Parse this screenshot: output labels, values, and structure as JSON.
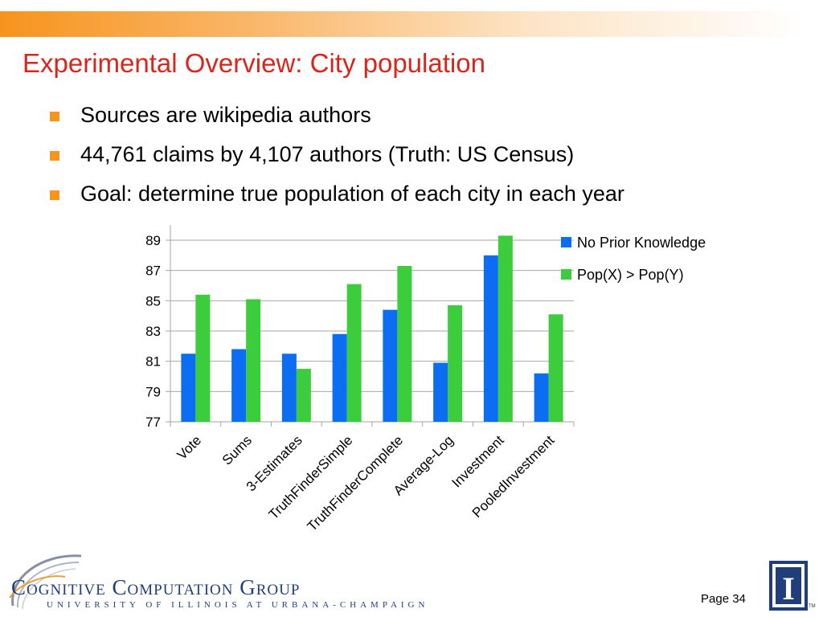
{
  "slide": {
    "title": "Experimental Overview: City population",
    "bullets": [
      "Sources are wikipedia authors",
      "44,761 claims by 4,107 authors (Truth: US Census)",
      "Goal: determine true population of each city in each year"
    ],
    "page_label": "Page 34"
  },
  "footer": {
    "logo_name": "Cognitive Computation Group",
    "logo_subtitle": "UNIVERSITY OF ILLINOIS AT URBANA-CHAMPAIGN",
    "emblem_letter": "I",
    "trademark": "TM"
  },
  "colors": {
    "accent_orange": "#f7941d",
    "title_red": "#d9261c",
    "series_blue": "#0b6ef2",
    "series_green": "#3ccd3c",
    "logo_navy": "#1f3e7a"
  },
  "chart_data": {
    "type": "bar",
    "categories": [
      "Vote",
      "Sums",
      "3-Estimates",
      "TruthFinderSimple",
      "TruthFinderComplete",
      "Average-Log",
      "Investment",
      "PooledInvestment"
    ],
    "series": [
      {
        "name": "No Prior Knowledge",
        "values": [
          81.5,
          81.8,
          81.5,
          82.8,
          84.4,
          80.9,
          88.0,
          80.2
        ]
      },
      {
        "name": "Pop(X) > Pop(Y)",
        "values": [
          85.4,
          85.1,
          80.5,
          86.1,
          87.3,
          84.7,
          89.3,
          84.1
        ]
      }
    ],
    "yticks": [
      "77",
      "79",
      "81",
      "83",
      "85",
      "87",
      "89"
    ],
    "ylim": [
      77,
      90
    ],
    "grid": true,
    "legend": "right"
  }
}
